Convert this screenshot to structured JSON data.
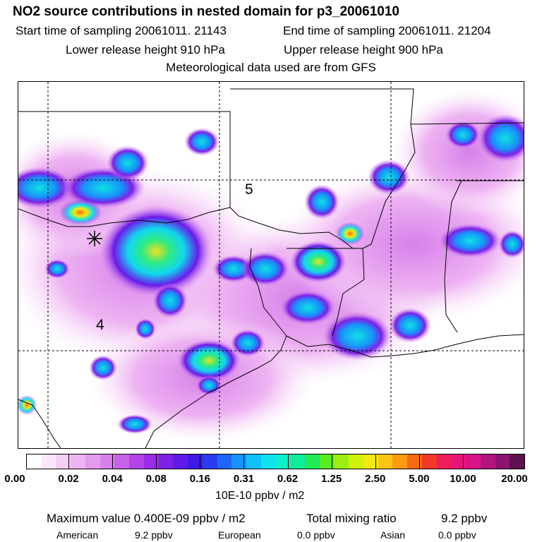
{
  "title": "NO2 source contributions in nested domain for p3_20061010",
  "header": {
    "start_label": "Start time of sampling 20061011. 21143",
    "end_label": "End time of sampling 20061011. 21204",
    "lower_label": "Lower release height  910 hPa",
    "upper_label": "Upper release height  900 hPa",
    "met_label": "Meteorological data used are from GFS"
  },
  "map": {
    "region_labels": [
      {
        "text": "5"
      },
      {
        "text": "4"
      }
    ]
  },
  "colorbar": {
    "colors": [
      "#ffffff",
      "#fbe6fb",
      "#f5cdf6",
      "#eeb4f2",
      "#e39bee",
      "#d780ea",
      "#c763e8",
      "#b243e6",
      "#9a2ce6",
      "#7e20e6",
      "#5f1ae8",
      "#3d1ae8",
      "#2b3cef",
      "#1f66f6",
      "#1793fb",
      "#0fc0fb",
      "#10e2ee",
      "#10f0cc",
      "#10ee99",
      "#20ea55",
      "#5aea20",
      "#9aee10",
      "#d0f010",
      "#f3ea10",
      "#fcc410",
      "#fc9a10",
      "#f86a14",
      "#f23a2a",
      "#ee1c5a",
      "#e8147a",
      "#d8148a",
      "#b2147e",
      "#8a1470",
      "#5e1250"
    ],
    "tick_labels": [
      "0.00",
      "0.02",
      "0.04",
      "0.08",
      "0.16",
      "0.31",
      "0.62",
      "1.25",
      "2.50",
      "5.00",
      "10.00",
      "20.00"
    ],
    "units": "10E-10 ppbv / m2"
  },
  "footer": {
    "max_label": "Maximum value  0.400E-09 ppbv / m2",
    "total_label": "Total mixing ratio",
    "total_value": "9.2 ppbv",
    "american_label": "American",
    "american_value": "9.2 ppbv",
    "european_label": "European",
    "european_value": "0.0 ppbv",
    "asian_label": "Asian",
    "asian_value": "0.0 ppbv"
  }
}
